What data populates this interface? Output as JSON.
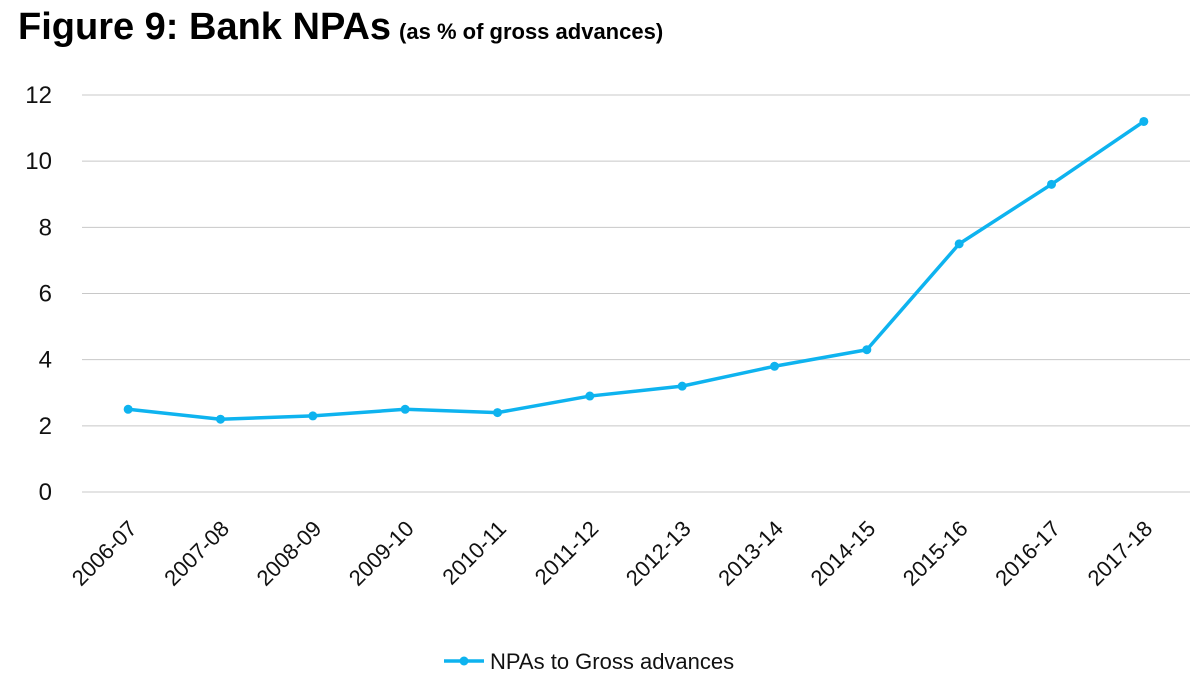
{
  "title": "Figure 9: Bank NPAs",
  "subtitle": "(as % of gross advances)",
  "chart_data": {
    "type": "line",
    "categories": [
      "2006-07",
      "2007-08",
      "2008-09",
      "2009-10",
      "2010-11",
      "2011-12",
      "2012-13",
      "2013-14",
      "2014-15",
      "2015-16",
      "2016-17",
      "2017-18"
    ],
    "series": [
      {
        "name": "NPAs to Gross advances",
        "values": [
          2.5,
          2.2,
          2.3,
          2.5,
          2.4,
          2.9,
          3.2,
          3.8,
          4.3,
          7.5,
          9.3,
          11.2
        ],
        "color": "#0EB3EF"
      }
    ],
    "ylim": [
      0,
      12
    ],
    "yticks": [
      0,
      2,
      4,
      6,
      8,
      10,
      12
    ],
    "grid": true,
    "legend": "bottom-center"
  }
}
